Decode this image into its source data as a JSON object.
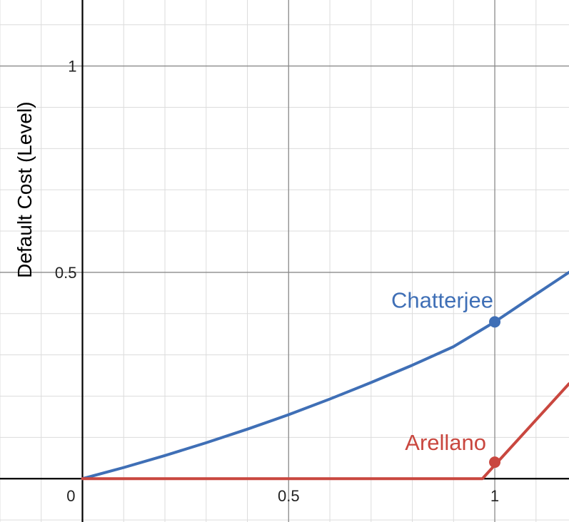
{
  "chart_data": {
    "type": "line",
    "title": "",
    "xlabel": "",
    "ylabel": "Default Cost (Level)",
    "xlim": [
      -0.2,
      1.18
    ],
    "ylim": [
      -0.105,
      1.16
    ],
    "grid": true,
    "major_step": 0.5,
    "minor_step": 0.1,
    "x_ticks": [
      "0.5",
      "1"
    ],
    "y_ticks": [
      "0.5",
      "1"
    ],
    "origin_label": "0",
    "series": [
      {
        "name": "Chatterjee",
        "color": "#3f6fb6",
        "x": [
          0,
          0.1,
          0.2,
          0.3,
          0.4,
          0.5,
          0.6,
          0.7,
          0.8,
          0.9,
          1.0,
          1.1,
          1.18
        ],
        "y": [
          0,
          0.027,
          0.056,
          0.087,
          0.12,
          0.155,
          0.193,
          0.233,
          0.275,
          0.32,
          0.38,
          0.447,
          0.5
        ],
        "highlight": {
          "x": 1.0,
          "y": 0.38
        }
      },
      {
        "name": "Arellano",
        "color": "#c9473f",
        "x": [
          0,
          0.97,
          1.18
        ],
        "y": [
          0,
          0,
          0.23
        ],
        "highlight": {
          "x": 1.0,
          "y": 0.04
        }
      }
    ]
  }
}
